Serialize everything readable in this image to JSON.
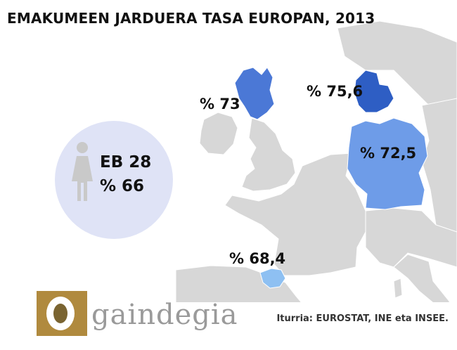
{
  "title": "EMAKUMEEN JARDUERA TASA EUROPAN, 2013",
  "eu": {
    "line1": "EB 28",
    "line2": "% 66"
  },
  "regions": [
    {
      "name": "Scotland",
      "label": "% 73",
      "color": "#4b78d6"
    },
    {
      "name": "Denmark",
      "label": "% 75,6",
      "color": "#2e5ec4"
    },
    {
      "name": "Germany",
      "label": "% 72,5",
      "color": "#6e9ce8"
    },
    {
      "name": "Basque Country",
      "label": "% 68,4",
      "color": "#8ec0f2"
    }
  ],
  "source": "Iturria: EUROSTAT, INE eta INSEE.",
  "logo": {
    "text": "gaindegia",
    "color": "#b08a3e"
  },
  "land_color": "#d7d7d7"
}
